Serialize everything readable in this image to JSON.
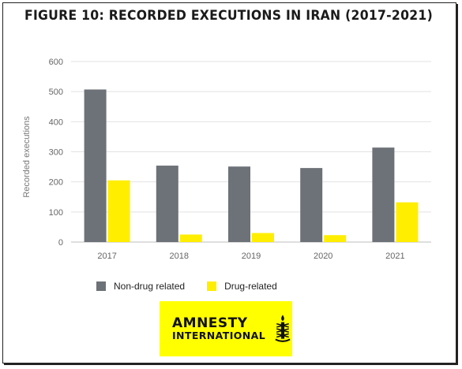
{
  "chart_data": {
    "type": "bar",
    "title": "FIGURE 10: RECORDED EXECUTIONS IN IRAN (2017-2021)",
    "xlabel": "",
    "ylabel": "Recorded executions",
    "categories": [
      "2017",
      "2018",
      "2019",
      "2020",
      "2021"
    ],
    "series": [
      {
        "name": "Non-drug related",
        "color": "#6d7178",
        "values": [
          507,
          254,
          251,
          246,
          314
        ]
      },
      {
        "name": "Drug-related",
        "color": "#ffee00",
        "values": [
          205,
          25,
          30,
          23,
          132
        ]
      }
    ],
    "ylim": [
      0,
      600
    ],
    "yticks": [
      0,
      100,
      200,
      300,
      400,
      500,
      600
    ],
    "grid": true,
    "legend_position": "bottom-left"
  },
  "logo": {
    "line1": "AMNESTY",
    "line2": "INTERNATIONAL",
    "icon": "candle-in-barbed-wire-icon",
    "background": "#ffff00"
  }
}
